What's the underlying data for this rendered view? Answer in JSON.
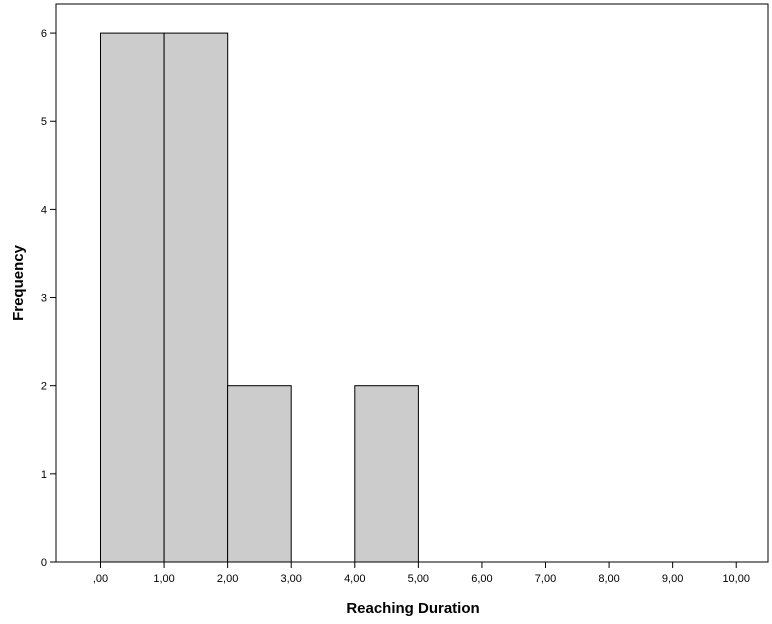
{
  "chart_data": {
    "type": "bar",
    "title": "",
    "xlabel": "Reaching Duration",
    "ylabel": "Frequency",
    "bins": [
      {
        "start": 0,
        "end": 1,
        "count": 6
      },
      {
        "start": 1,
        "end": 2,
        "count": 6
      },
      {
        "start": 2,
        "end": 3,
        "count": 2
      },
      {
        "start": 3,
        "end": 4,
        "count": 0
      },
      {
        "start": 4,
        "end": 5,
        "count": 2
      },
      {
        "start": 5,
        "end": 6,
        "count": 0
      },
      {
        "start": 6,
        "end": 7,
        "count": 0
      },
      {
        "start": 7,
        "end": 8,
        "count": 0
      },
      {
        "start": 8,
        "end": 9,
        "count": 0
      },
      {
        "start": 9,
        "end": 10,
        "count": 0
      }
    ],
    "x_ticks": [
      ",00",
      "1,00",
      "2,00",
      "3,00",
      "4,00",
      "5,00",
      "6,00",
      "7,00",
      "8,00",
      "9,00",
      "10,00"
    ],
    "y_ticks": [
      "0",
      "1",
      "2",
      "3",
      "4",
      "5",
      "6"
    ],
    "xlim": [
      -0.7,
      10.5
    ],
    "ylim": [
      0,
      6.33
    ],
    "grid": false,
    "bar_fill": "#cccccc",
    "bar_stroke": "#000000"
  }
}
